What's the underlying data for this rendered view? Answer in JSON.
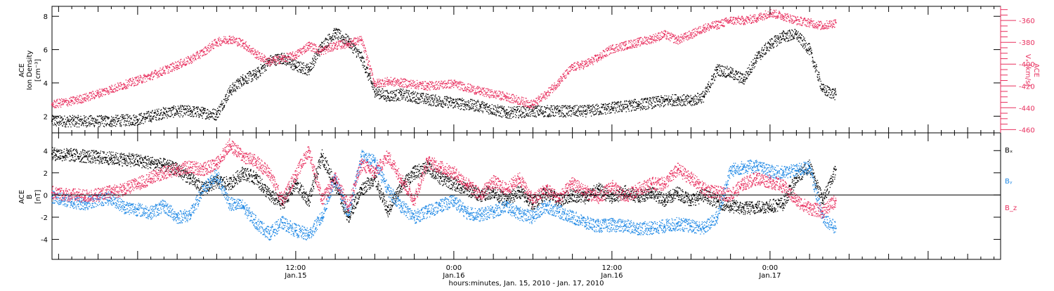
{
  "colors": {
    "black": "#000000",
    "pink": "#e8305f",
    "blue": "#1e88e5",
    "axis": "#000000"
  },
  "x_axis": {
    "label": "hours:minutes, Jan. 15, 2010 - Jan. 17, 2010",
    "range_hours": [
      -6.5,
      65.5
    ],
    "ticks": [
      {
        "hour": 12,
        "time": "12:00",
        "day": "Jan.15"
      },
      {
        "hour": 24,
        "time": "0:00",
        "day": "Jan.16"
      },
      {
        "hour": 36,
        "time": "12:00",
        "day": "Jan.16"
      },
      {
        "hour": 48,
        "time": "0:00",
        "day": "Jan.17"
      }
    ],
    "minor_tick_step_hours": 1,
    "medium_tick_step_hours": 3
  },
  "chart_data": [
    {
      "type": "scatter",
      "panel": "top",
      "left_axis": {
        "label_lines": [
          "ACE",
          "Ion Density",
          "[cm⁻³]"
        ],
        "ylim": [
          1,
          8.6
        ],
        "ticks": [
          "2",
          "4",
          "6",
          "8"
        ],
        "tick_values": [
          2,
          4,
          6,
          8
        ]
      },
      "right_axis": {
        "label_lines": [
          "ACE",
          "Vₓ [km/s]"
        ],
        "ylim": [
          -463,
          -347
        ],
        "ticks": [
          "-360",
          "-380",
          "-400",
          "-420",
          "-440",
          "-460"
        ],
        "tick_values": [
          -360,
          -380,
          -400,
          -420,
          -440,
          -460
        ],
        "color": "#e8305f"
      },
      "series": [
        {
          "axis": "left",
          "color": "#000000",
          "x": [
            -6.5,
            -4,
            -2,
            0,
            1,
            2,
            3,
            4,
            5,
            6,
            7,
            8,
            9,
            10,
            11,
            12,
            13,
            14,
            15,
            16,
            17,
            18,
            19,
            20,
            22,
            24,
            26,
            28,
            30,
            32,
            34,
            36,
            38,
            40,
            41,
            42,
            43,
            44,
            45,
            46,
            47,
            48,
            49,
            50,
            51,
            52,
            53
          ],
          "values": [
            1.7,
            1.7,
            1.7,
            1.8,
            2.0,
            2.2,
            2.3,
            2.3,
            2.2,
            2.1,
            3.5,
            4.2,
            4.5,
            5.3,
            5.5,
            5.0,
            4.8,
            6.2,
            7.0,
            6.5,
            5.5,
            3.5,
            3.2,
            3.3,
            3.0,
            2.8,
            2.6,
            2.2,
            2.3,
            2.3,
            2.3,
            2.5,
            2.7,
            2.9,
            3.0,
            2.9,
            3.2,
            4.8,
            4.6,
            4.2,
            5.5,
            6.3,
            6.8,
            6.9,
            6.0,
            3.6,
            3.3
          ]
        },
        {
          "axis": "right",
          "color": "#e8305f",
          "x": [
            -6.5,
            -5,
            -4,
            -3,
            -2,
            -1,
            0,
            1,
            2,
            3,
            4,
            5,
            6,
            7,
            8,
            9,
            10,
            11,
            12,
            13,
            14,
            15,
            16,
            17,
            18,
            19,
            20,
            22,
            24,
            26,
            28,
            30,
            31,
            32,
            33,
            34,
            35,
            36,
            37,
            38,
            39,
            40,
            41,
            42,
            43,
            44,
            45,
            46,
            47,
            48,
            49,
            50,
            51,
            52,
            53
          ],
          "values": [
            -437,
            -434,
            -431,
            -427,
            -423,
            -419,
            -415,
            -411,
            -406,
            -401,
            -396,
            -389,
            -380,
            -377,
            -381,
            -391,
            -398,
            -395,
            -392,
            -383,
            -388,
            -383,
            -381,
            -378,
            -418,
            -416,
            -417,
            -420,
            -418,
            -425,
            -430,
            -437,
            -428,
            -416,
            -403,
            -400,
            -394,
            -386,
            -383,
            -380,
            -377,
            -373,
            -378,
            -373,
            -367,
            -364,
            -360,
            -360,
            -358,
            -353,
            -356,
            -360,
            -362,
            -365,
            -362
          ]
        }
      ]
    },
    {
      "type": "scatter",
      "panel": "bottom",
      "left_axis": {
        "label_lines": [
          "ACE",
          "B",
          "[nT]"
        ],
        "ylim": [
          -5.8,
          5.6
        ],
        "ticks": [
          "4",
          "2",
          "0",
          "-2",
          "-4"
        ],
        "tick_values": [
          4,
          2,
          0,
          -2,
          -4
        ]
      },
      "zero_line": true,
      "legend": {
        "placement": "right",
        "labels": [
          "Bₓ",
          "Bᵧ",
          "B_z"
        ]
      },
      "series": [
        {
          "name": "Bₓ",
          "color": "#000000",
          "x": [
            -6.5,
            -5,
            -4,
            -3,
            -2,
            -1,
            0,
            1,
            2,
            3,
            4,
            5,
            6,
            7,
            8,
            9,
            10,
            11,
            12,
            13,
            14,
            15,
            16,
            17,
            18,
            19,
            20,
            21,
            22,
            23,
            24,
            25,
            26,
            27,
            28,
            29,
            30,
            31,
            32,
            33,
            34,
            35,
            36,
            37,
            38,
            39,
            40,
            41,
            42,
            43,
            44,
            45,
            46,
            47,
            48,
            49,
            50,
            51,
            52,
            53
          ],
          "values": [
            3.7,
            3.6,
            3.5,
            3.4,
            3.3,
            3.2,
            3.1,
            2.9,
            2.7,
            2.3,
            1.5,
            0.5,
            1.2,
            1.0,
            2.0,
            1.5,
            0.0,
            -0.8,
            1.0,
            -0.5,
            3.5,
            1.0,
            -2.0,
            0.5,
            1.5,
            -1.5,
            0.8,
            2.0,
            2.5,
            1.5,
            1.0,
            0.5,
            0.0,
            0.3,
            -0.5,
            0.3,
            -0.8,
            0.2,
            -0.5,
            0.0,
            -0.2,
            0.5,
            -0.3,
            0.3,
            -0.2,
            0.3,
            -0.5,
            0.2,
            -0.5,
            0.0,
            -0.6,
            -1.0,
            -1.2,
            -1.1,
            -1.0,
            -0.8,
            1.5,
            2.6,
            -0.5,
            2.3
          ]
        },
        {
          "name": "Bᵧ",
          "color": "#1e88e5",
          "x": [
            -6.5,
            -5,
            -4,
            -3,
            -2,
            -1,
            0,
            1,
            2,
            3,
            4,
            5,
            6,
            7,
            8,
            9,
            10,
            11,
            12,
            13,
            14,
            15,
            16,
            17,
            18,
            19,
            20,
            21,
            22,
            23,
            24,
            25,
            26,
            27,
            28,
            29,
            30,
            31,
            32,
            33,
            34,
            35,
            36,
            37,
            38,
            39,
            40,
            41,
            42,
            43,
            44,
            45,
            46,
            47,
            48,
            49,
            50,
            51,
            52,
            53
          ],
          "values": [
            -0.2,
            -0.6,
            -0.8,
            -0.4,
            -0.3,
            -1.1,
            -1.3,
            -1.6,
            -1.0,
            -2.0,
            -1.8,
            0.5,
            1.8,
            -0.8,
            -1.0,
            -2.5,
            -3.5,
            -2.5,
            -3.2,
            -3.6,
            -2.0,
            1.5,
            -1.8,
            3.5,
            3.0,
            0.5,
            -1.0,
            -2.0,
            -1.5,
            -1.0,
            -0.5,
            -1.6,
            -1.8,
            -1.5,
            -1.0,
            -1.7,
            -2.0,
            -1.0,
            -1.5,
            -2.0,
            -2.5,
            -2.8,
            -2.7,
            -2.8,
            -3.0,
            -3.0,
            -2.8,
            -2.6,
            -2.8,
            -3.0,
            -2.0,
            2.2,
            2.5,
            2.6,
            2.1,
            2.0,
            2.2,
            2.5,
            -2.0,
            -3.0
          ]
        },
        {
          "name": "B_z",
          "color": "#e8305f",
          "x": [
            -6.5,
            -5,
            -4,
            -3,
            -2,
            -1,
            0,
            1,
            2,
            3,
            4,
            5,
            6,
            7,
            8,
            9,
            10,
            11,
            12,
            13,
            14,
            15,
            16,
            17,
            18,
            19,
            20,
            21,
            22,
            23,
            24,
            25,
            26,
            27,
            28,
            29,
            30,
            31,
            32,
            33,
            34,
            35,
            36,
            37,
            38,
            39,
            40,
            41,
            42,
            43,
            44,
            45,
            46,
            47,
            48,
            49,
            50,
            51,
            52,
            53
          ],
          "values": [
            0.2,
            0.0,
            -0.1,
            0.0,
            0.3,
            0.5,
            1.0,
            1.5,
            2.0,
            2.3,
            2.5,
            2.3,
            2.8,
            4.5,
            3.5,
            3.0,
            2.0,
            -0.5,
            1.8,
            4.0,
            -0.5,
            1.5,
            -1.0,
            2.8,
            2.0,
            3.5,
            1.5,
            -0.5,
            3.0,
            2.5,
            2.0,
            1.0,
            0.0,
            1.2,
            0.5,
            1.5,
            -0.5,
            0.5,
            -0.3,
            1.0,
            0.3,
            -0.3,
            0.8,
            -0.2,
            0.5,
            1.0,
            1.0,
            2.3,
            1.5,
            0.5,
            0.2,
            0.0,
            1.0,
            1.5,
            1.2,
            0.8,
            -0.5,
            -1.2,
            -1.5,
            -0.5
          ]
        }
      ]
    }
  ]
}
